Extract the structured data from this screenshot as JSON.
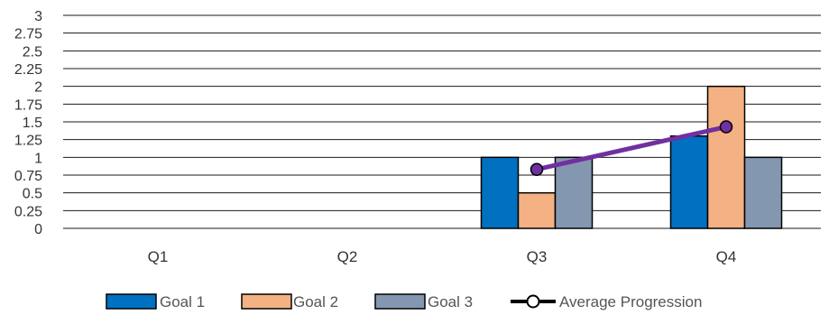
{
  "chart_data": {
    "type": "bar",
    "categories": [
      "Q1",
      "Q2",
      "Q3",
      "Q4"
    ],
    "series": [
      {
        "name": "Goal 1",
        "kind": "bar",
        "color": "#0070C0",
        "values": [
          null,
          null,
          1,
          1.3
        ]
      },
      {
        "name": "Goal 2",
        "kind": "bar",
        "color": "#F4B183",
        "values": [
          null,
          null,
          0.5,
          2
        ]
      },
      {
        "name": "Goal 3",
        "kind": "bar",
        "color": "#8497B0",
        "values": [
          null,
          null,
          1,
          1
        ]
      },
      {
        "name": "Average Progression",
        "kind": "line",
        "color": "#7030A0",
        "values": [
          null,
          null,
          0.83,
          1.43
        ]
      }
    ],
    "ylim": [
      0,
      3
    ],
    "yticks": [
      "0",
      "0.25",
      "0.5",
      "0.75",
      "1",
      "1.25",
      "1.5",
      "1.75",
      "2",
      "2.25",
      "2.5",
      "2.75",
      "3"
    ],
    "grid": true,
    "legend": "bottom"
  }
}
